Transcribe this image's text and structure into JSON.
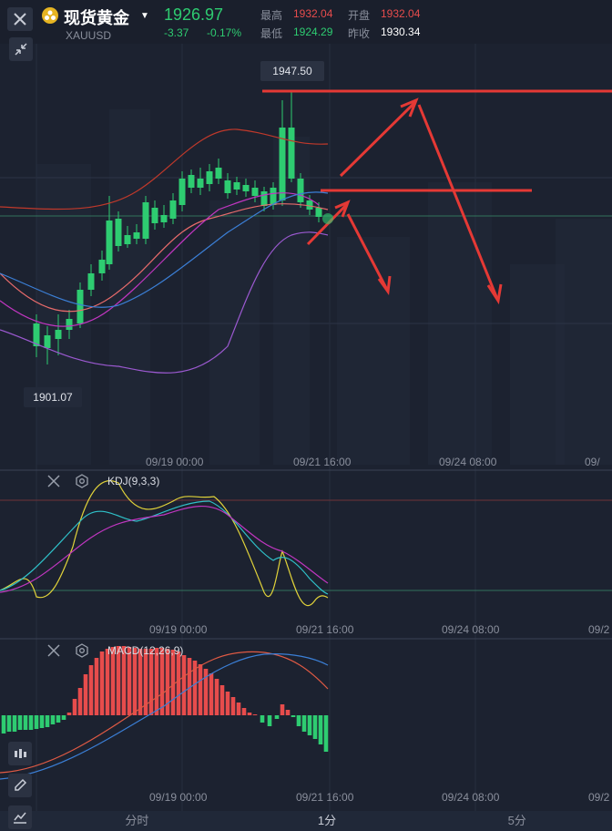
{
  "header": {
    "name": "现货黄金",
    "symbol": "XAUUSD",
    "price": "1926.97",
    "change": "-3.37",
    "change_pct": "-0.17%",
    "high_label": "最高",
    "high": "1932.04",
    "open_label": "开盘",
    "open": "1932.04",
    "low_label": "最低",
    "low": "1924.29",
    "prev_label": "昨收",
    "prev": "1930.34"
  },
  "main_chart": {
    "max_label": "1947.50",
    "min_label": "1901.07",
    "x_ticks": [
      "09/19 00:00",
      "09/21 16:00",
      "09/24 08:00",
      "09/"
    ]
  },
  "kdj": {
    "label": "KDJ(9,3,3)",
    "x_ticks": [
      "09/19 00:00",
      "09/21 16:00",
      "09/24 08:00",
      "09/2"
    ]
  },
  "macd": {
    "label": "MACD(12,26,9)",
    "x_ticks": [
      "09/19 00:00",
      "09/21 16:00",
      "09/24 08:00",
      "09/2"
    ]
  },
  "tabs": [
    "分时",
    "1分",
    "5分"
  ],
  "colors": {
    "up": "#e74c4c",
    "down": "#2ecc71",
    "background": "#1c2230",
    "accent_gold": "#e6b422"
  }
}
